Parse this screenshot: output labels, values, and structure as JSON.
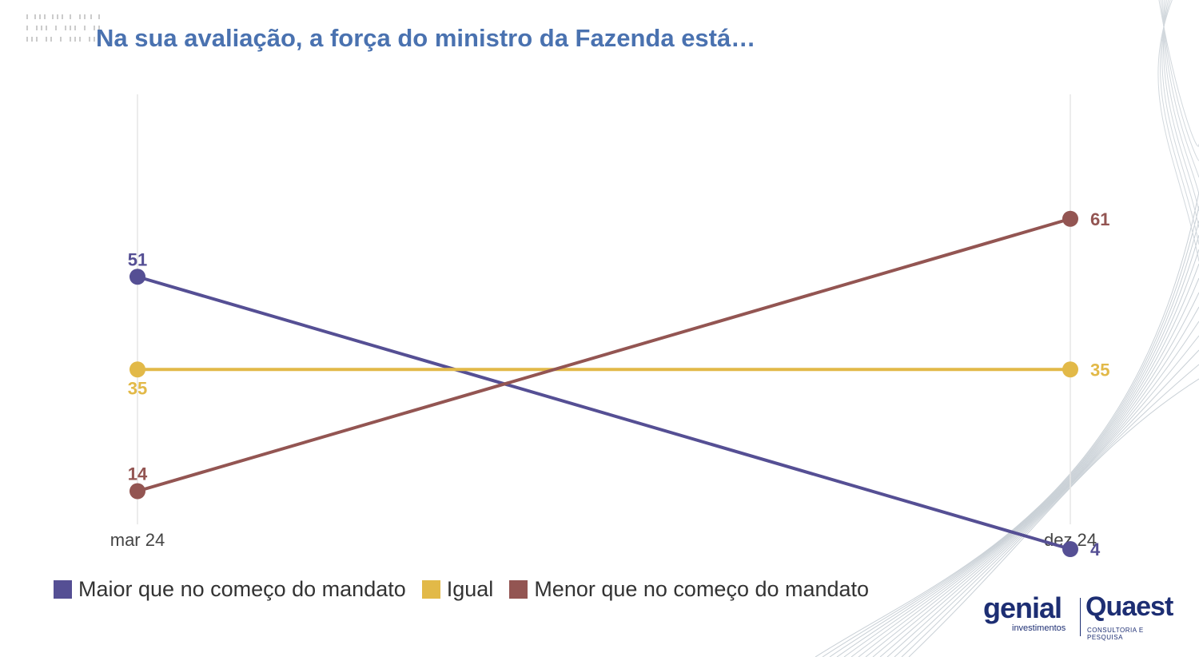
{
  "title": "Na sua avaliação, a força do ministro da Fazenda está…",
  "chart_data": {
    "type": "line",
    "x": [
      "mar 24",
      "dez 24"
    ],
    "ylim": [
      0,
      70
    ],
    "grid": false,
    "legend_position": "bottom-left",
    "series": [
      {
        "name": "Maior que no começo do mandato",
        "values": [
          51,
          4
        ],
        "color": "#554f94"
      },
      {
        "name": "Igual",
        "values": [
          35,
          35
        ],
        "color": "#e2b948"
      },
      {
        "name": "Menor que no começo do mandato",
        "values": [
          14,
          61
        ],
        "color": "#935552"
      }
    ]
  },
  "logos": {
    "genial": "genial",
    "genial_sub": "investimentos",
    "quaest": "Quaest",
    "quaest_sub": "CONSULTORIA E PESQUISA"
  },
  "colors": {
    "title": "#4a72b0",
    "brand": "#1d2e73"
  }
}
